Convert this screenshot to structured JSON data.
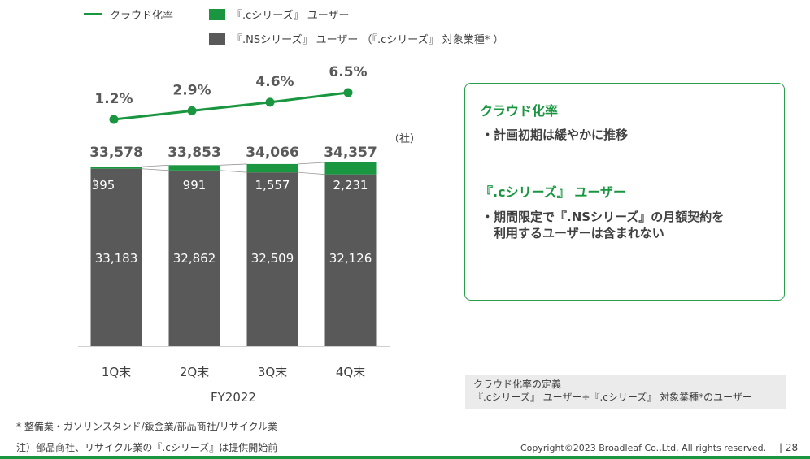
{
  "legend": {
    "cloud_rate": "クラウド化率",
    "c_series": "『.cシリーズ』 ユーザー",
    "ns_series": "『.NSシリーズ』 ユーザー （『.cシリーズ』 対象業種* ）"
  },
  "unit_label": "（社）",
  "chart_data": {
    "type": "bar",
    "categories": [
      "1Q末",
      "2Q末",
      "3Q末",
      "4Q末"
    ],
    "xlabel": "FY2022",
    "series": [
      {
        "name": "『.NSシリーズ』 ユーザー （『.cシリーズ』 対象業種* ）",
        "values": [
          33183,
          32862,
          32509,
          32126
        ],
        "color": "#595959"
      },
      {
        "name": "『.cシリーズ』 ユーザー",
        "values": [
          395,
          991,
          1557,
          2231
        ],
        "color": "#1a9641"
      }
    ],
    "totals": [
      33578,
      33853,
      34066,
      34357
    ],
    "total_labels": [
      "33,578",
      "33,853",
      "34,066",
      "34,357"
    ],
    "ns_labels": [
      "33,183",
      "32,862",
      "32,509",
      "32,126"
    ],
    "c_labels": [
      "395",
      "991",
      "1,557",
      "2,231"
    ],
    "line": {
      "name": "クラウド化率",
      "values": [
        1.2,
        2.9,
        4.6,
        6.5
      ],
      "labels": [
        "1.2%",
        "2.9%",
        "4.6%",
        "6.5%"
      ],
      "color": "#1a9641"
    }
  },
  "info_box": {
    "heading1": "クラウド化率",
    "bullet1": "・計画初期は緩やかに推移",
    "heading2": "『.cシリーズ』 ユーザー",
    "bullet2_line1": "・期間限定で『.NSシリーズ』の月額契約を",
    "bullet2_line2": "　利用するユーザーは含まれない"
  },
  "definition": {
    "line1": "クラウド化率の定義",
    "line2": "『.cシリーズ』 ユーザー÷『.cシリーズ』 対象業種*のユーザー"
  },
  "notes": {
    "note1": "* 整備業・ガソリンスタンド/鈑金業/部品商社/リサイクル業",
    "note2": "注）部品商社、リサイクル業の『.cシリーズ』は提供開始前"
  },
  "footer": {
    "copyright": "Copyright©2023  Broadleaf  Co.,Ltd.  All  rights  reserved.",
    "page": "|  28"
  }
}
